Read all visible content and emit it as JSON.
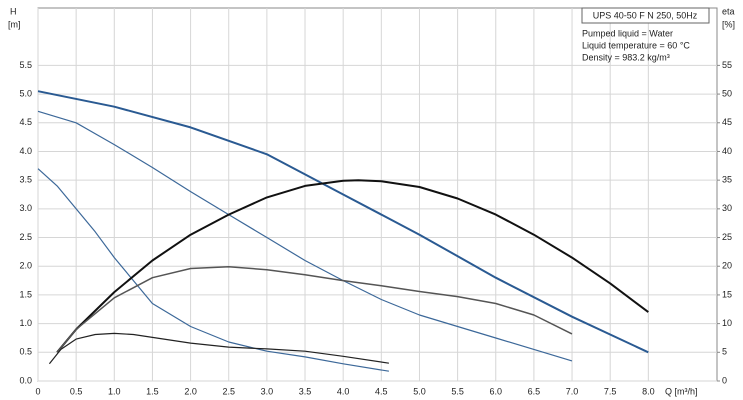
{
  "chart_data": {
    "type": "line",
    "title": "UPS 40-50 F N 250, 50Hz",
    "annotations": [
      "Pumped liquid = Water",
      "Liquid temperature = 60 °C",
      "Density = 983.2 kg/m³"
    ],
    "y_label": "H",
    "y_unit": "[m]",
    "y2_label": "eta",
    "y2_unit": "[%]",
    "x_label": "Q [m³/h]",
    "xlim": [
      0,
      8.9
    ],
    "ylim": [
      0,
      6.5
    ],
    "y2lim": [
      0,
      65
    ],
    "grid": true,
    "xticks": [
      0,
      0.5,
      {
        "value": 1,
        "label": "1.0"
      },
      1.5,
      {
        "value": 2,
        "label": "2.0"
      },
      2.5,
      {
        "value": 3,
        "label": "3.0"
      },
      3.5,
      {
        "value": 4,
        "label": "4.0"
      },
      4.5,
      {
        "value": 5,
        "label": "5.0"
      },
      5.5,
      {
        "value": 6,
        "label": "6.0"
      },
      6.5,
      {
        "value": 7,
        "label": "7.0"
      },
      7.5,
      {
        "value": 8,
        "label": "8.0"
      }
    ],
    "yticks": [
      {
        "value": 0,
        "label": "0.0"
      },
      0.5,
      {
        "value": 1,
        "label": "1.0"
      },
      1.5,
      {
        "value": 2,
        "label": "2.0"
      },
      2.5,
      {
        "value": 3,
        "label": "3.0"
      },
      3.5,
      {
        "value": 4,
        "label": "4.0"
      },
      4.5,
      {
        "value": 5,
        "label": "5.0"
      },
      5.5
    ],
    "y2ticks": [
      0,
      5,
      10,
      15,
      20,
      25,
      30,
      35,
      40,
      45,
      50,
      55
    ],
    "series": [
      {
        "color": "#2a5a92",
        "width": 2,
        "x": [
          0,
          1,
          2,
          3,
          4,
          5,
          6,
          7,
          8
        ],
        "values": [
          5.05,
          4.78,
          4.42,
          3.95,
          3.25,
          2.55,
          1.8,
          1.12,
          0.5
        ]
      },
      {
        "color": "#3c6899",
        "width": 1.2,
        "x": [
          0,
          0.5,
          1,
          1.5,
          2,
          2.5,
          3,
          3.5,
          4,
          4.5,
          5,
          5.5,
          6,
          6.5,
          7
        ],
        "values": [
          4.7,
          4.5,
          4.12,
          3.72,
          3.3,
          2.9,
          2.5,
          2.1,
          1.75,
          1.42,
          1.15,
          0.95,
          0.75,
          0.55,
          0.35
        ]
      },
      {
        "color": "#3c6899",
        "width": 1.2,
        "x": [
          0,
          0.25,
          0.5,
          0.75,
          1,
          1.25,
          1.5,
          2,
          2.5,
          3,
          3.5,
          4,
          4.6
        ],
        "values": [
          3.7,
          3.4,
          3.0,
          2.6,
          2.15,
          1.75,
          1.35,
          0.95,
          0.68,
          0.52,
          0.42,
          0.3,
          0.17
        ]
      },
      {
        "color": "#111111",
        "width": 2,
        "axis": "y2",
        "x": [
          0.25,
          0.5,
          1,
          1.5,
          2,
          2.5,
          3,
          3.5,
          4,
          4.2,
          4.5,
          5,
          5.5,
          6,
          6.5,
          7,
          7.5,
          8
        ],
        "values": [
          5,
          9,
          15.5,
          21,
          25.5,
          29,
          32,
          34,
          34.9,
          35,
          34.8,
          33.8,
          31.8,
          29,
          25.5,
          21.5,
          17,
          12
        ]
      },
      {
        "color": "#555555",
        "width": 1.5,
        "axis": "y2",
        "x": [
          0.25,
          0.5,
          1,
          1.5,
          2,
          2.5,
          3,
          3.5,
          4,
          4.5,
          5,
          5.5,
          6,
          6.5,
          7
        ],
        "values": [
          5,
          9,
          14.5,
          18,
          19.6,
          19.9,
          19.4,
          18.5,
          17.5,
          16.6,
          15.6,
          14.7,
          13.5,
          11.5,
          8.2
        ]
      },
      {
        "color": "#222222",
        "width": 1.2,
        "axis": "y2",
        "x": [
          0.15,
          0.3,
          0.5,
          0.75,
          1,
          1.25,
          1.5,
          2,
          2.5,
          3,
          3.5,
          4,
          4.6
        ],
        "values": [
          3,
          5.5,
          7.3,
          8.1,
          8.3,
          8.1,
          7.6,
          6.6,
          5.9,
          5.6,
          5.2,
          4.3,
          3.1
        ]
      }
    ]
  }
}
